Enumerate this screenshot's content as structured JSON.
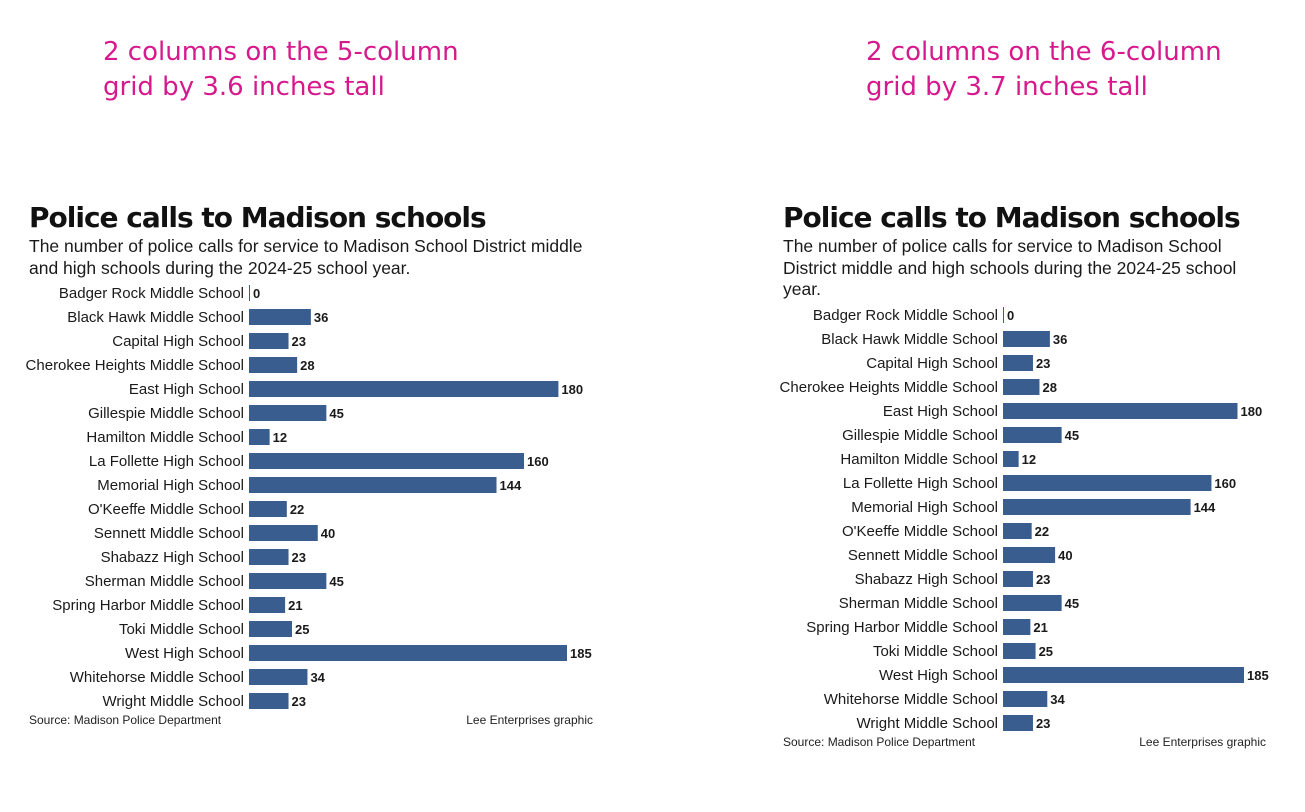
{
  "annotations": {
    "left": "2 columns on the 5-column\ngrid by 3.6 inches tall",
    "right": "2 columns on the 6-column\ngrid by 3.7 inches tall"
  },
  "chart_data": [
    {
      "type": "bar",
      "orientation": "horizontal",
      "title": "Police calls to Madison schools",
      "subtitle": "The number of police calls for service to Madison School District middle and high schools during the 2024-25 school year.",
      "categories": [
        "Badger Rock Middle School",
        "Black Hawk Middle School",
        "Capital High School",
        "Cherokee Heights Middle School",
        "East High School",
        "Gillespie Middle School",
        "Hamilton Middle School",
        "La Follette High School",
        "Memorial High School",
        "O'Keeffe Middle School",
        "Sennett Middle School",
        "Shabazz High School",
        "Sherman Middle School",
        "Spring Harbor Middle School",
        "Toki Middle School",
        "West High School",
        "Whitehorse Middle School",
        "Wright Middle School"
      ],
      "values": [
        0,
        36,
        23,
        28,
        180,
        45,
        12,
        160,
        144,
        22,
        40,
        23,
        45,
        21,
        25,
        185,
        34,
        23
      ],
      "source": "Source: Madison Police Department",
      "credit": "Lee Enterprises graphic",
      "bar_color": "#3a5d8f",
      "xlim": [
        0,
        185
      ]
    },
    {
      "type": "bar",
      "orientation": "horizontal",
      "title": "Police calls to Madison schools",
      "subtitle": "The number of police calls for service to Madison School District middle and high schools during the 2024-25 school year.",
      "categories": [
        "Badger Rock Middle School",
        "Black Hawk Middle School",
        "Capital High School",
        "Cherokee Heights Middle School",
        "East High School",
        "Gillespie Middle School",
        "Hamilton Middle School",
        "La Follette High School",
        "Memorial High School",
        "O'Keeffe Middle School",
        "Sennett Middle School",
        "Shabazz High School",
        "Sherman Middle School",
        "Spring Harbor Middle School",
        "Toki Middle School",
        "West High School",
        "Whitehorse Middle School",
        "Wright Middle School"
      ],
      "values": [
        0,
        36,
        23,
        28,
        180,
        45,
        12,
        160,
        144,
        22,
        40,
        23,
        45,
        21,
        25,
        185,
        34,
        23
      ],
      "source": "Source: Madison Police Department",
      "credit": "Lee Enterprises graphic",
      "bar_color": "#3a5d8f",
      "xlim": [
        0,
        185
      ]
    }
  ]
}
